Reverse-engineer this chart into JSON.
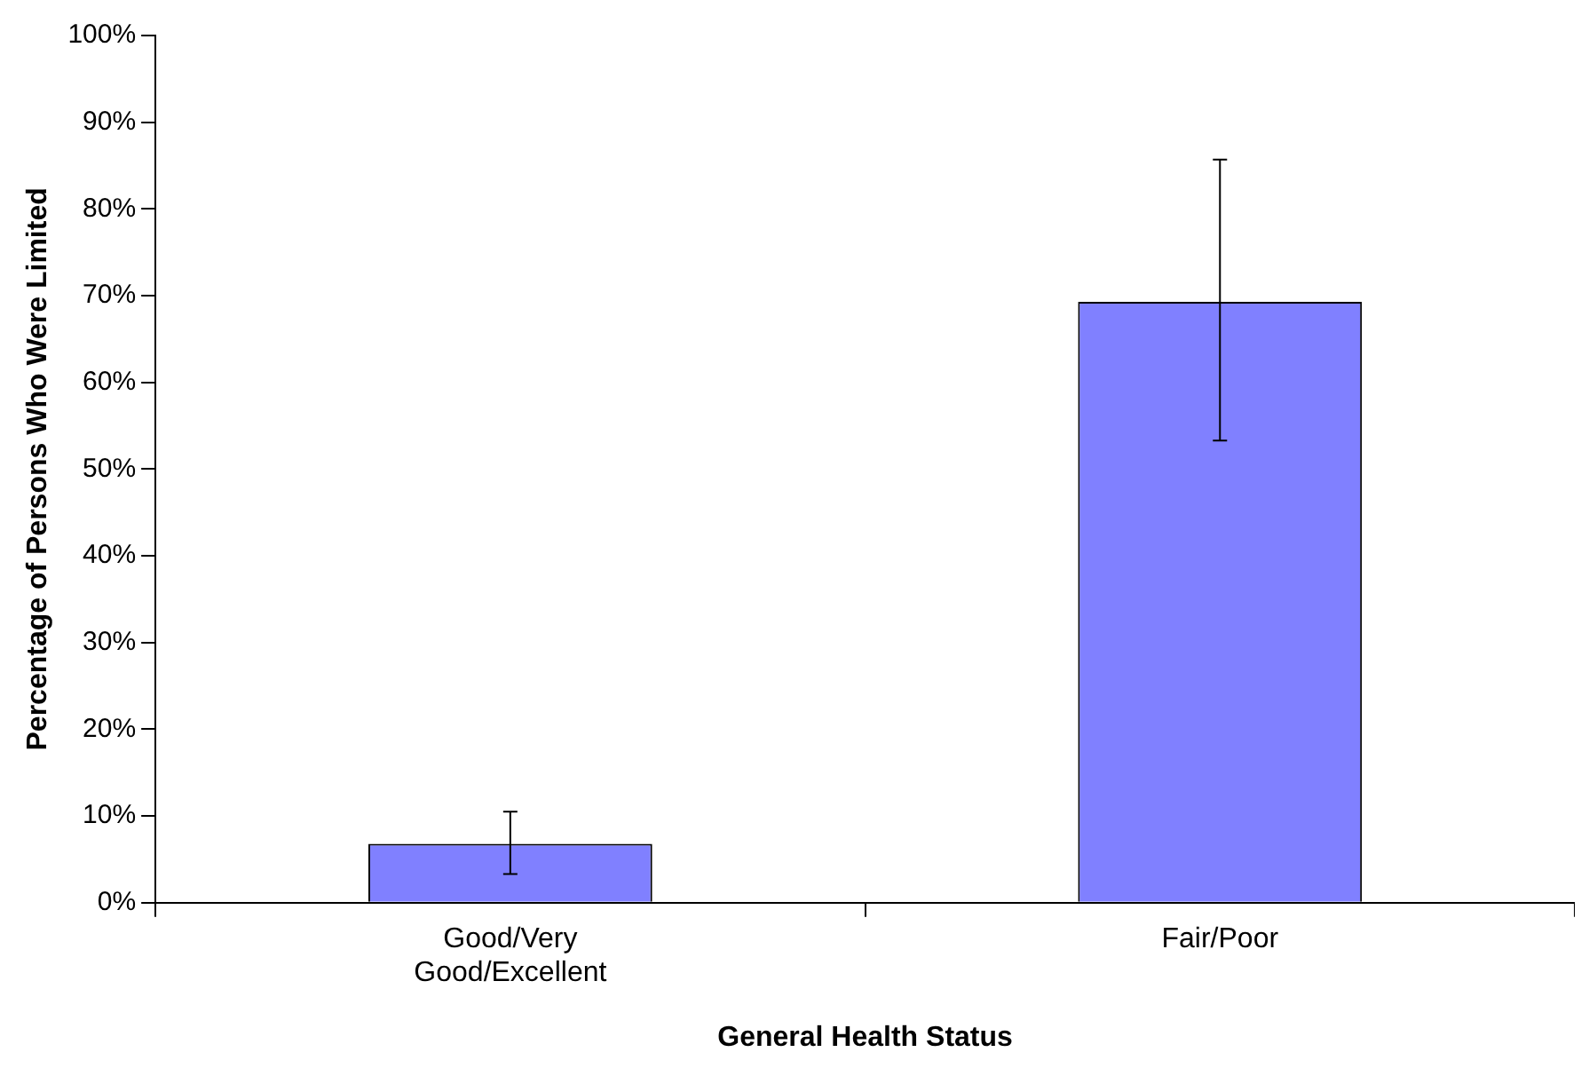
{
  "chart_data": {
    "type": "bar",
    "xlabel": "General Health Status",
    "ylabel": "Percentage of Persons Who Were Limited",
    "categories": [
      "Good/Very Good/Excellent",
      "Fair/Poor"
    ],
    "values": [
      6.8,
      69.3
    ],
    "errors": [
      [
        3.3,
        10.5
      ],
      [
        53.3,
        85.7
      ]
    ],
    "color": "#8080ff",
    "ylim": [
      0,
      100
    ],
    "yticks": [
      {
        "value": 0,
        "label": "0%"
      },
      {
        "value": 10,
        "label": "10%"
      },
      {
        "value": 20,
        "label": "20%"
      },
      {
        "value": 30,
        "label": "30%"
      },
      {
        "value": 40,
        "label": "40%"
      },
      {
        "value": 50,
        "label": "50%"
      },
      {
        "value": 60,
        "label": "60%"
      },
      {
        "value": 70,
        "label": "70%"
      },
      {
        "value": 80,
        "label": "80%"
      },
      {
        "value": 90,
        "label": "90%"
      },
      {
        "value": 100,
        "label": "100%"
      }
    ],
    "grid": false,
    "legend": false
  }
}
